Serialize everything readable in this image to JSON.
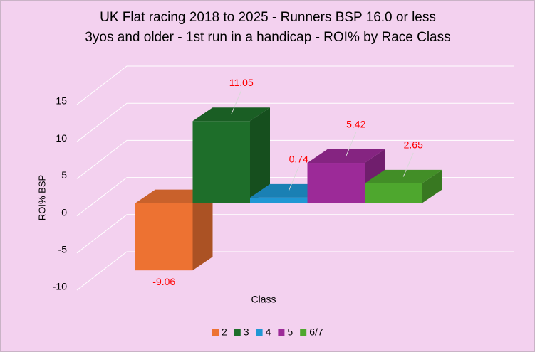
{
  "chart_data": {
    "type": "bar",
    "title": [
      "UK Flat racing 2018 to 2025 - Runners BSP 16.0 or less",
      "3yos and older - 1st run in a handicap - ROI% by Race Class"
    ],
    "x_label": "Class",
    "y_label": "ROI% BSP",
    "ylim": [
      -10,
      15
    ],
    "yticks": [
      -10,
      -5,
      0,
      5,
      10,
      15
    ],
    "grid": true,
    "legend": "bottom",
    "value_label_color": "#ff0000",
    "series": [
      {
        "name": "2",
        "color": "#ed7232",
        "values": [
          -9.06
        ]
      },
      {
        "name": "3",
        "color": "#1e6e2a",
        "values": [
          11.05
        ]
      },
      {
        "name": "4",
        "color": "#1f97d4",
        "values": [
          0.74
        ]
      },
      {
        "name": "5",
        "color": "#9c2a98",
        "values": [
          5.42
        ]
      },
      {
        "name": "6/7",
        "color": "#4ea72e",
        "values": [
          2.65
        ]
      }
    ]
  }
}
